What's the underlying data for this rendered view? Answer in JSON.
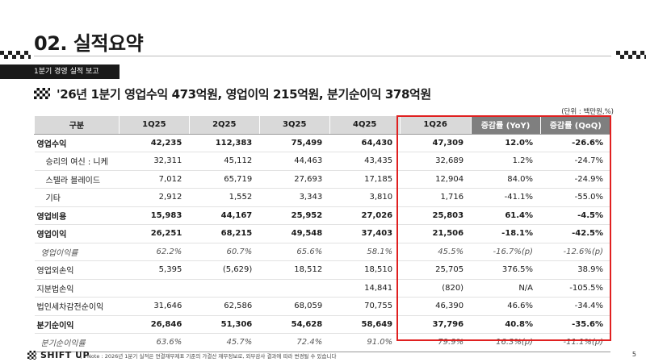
{
  "page": {
    "title": "02. 실적요약",
    "section_tab": "1분기 경영 실적 보고",
    "headline": "'26년 1분기 영업수익 473억원, 영업이익 215억원, 분기순이익 378억원",
    "unit": "(단위 : 백만원,%)",
    "footer_logo": "SHIFT UP",
    "note": "Note : 2026년 1분기 실적은 연결재무제표 기준의 가결산 재무정보로, 외부감사 결과에 따라 변경될 수 있습니다",
    "page_number": "5"
  },
  "table": {
    "headers": [
      "구분",
      "1Q25",
      "2Q25",
      "3Q25",
      "4Q25",
      "1Q26",
      "증감률 (YoY)",
      "증감률 (QoQ)"
    ],
    "rows": [
      {
        "label": "영업수익",
        "style": "bold",
        "values": [
          "42,235",
          "112,383",
          "75,499",
          "64,430",
          "47,309",
          "12.0%",
          "-26.6%"
        ]
      },
      {
        "label": "승리의 여신 : 니케",
        "style": "sub",
        "values": [
          "32,311",
          "45,112",
          "44,463",
          "43,435",
          "32,689",
          "1.2%",
          "-24.7%"
        ]
      },
      {
        "label": "스텔라 블레이드",
        "style": "sub",
        "values": [
          "7,012",
          "65,719",
          "27,693",
          "17,185",
          "12,904",
          "84.0%",
          "-24.9%"
        ]
      },
      {
        "label": "기타",
        "style": "sub",
        "values": [
          "2,912",
          "1,552",
          "3,343",
          "3,810",
          "1,716",
          "-41.1%",
          "-55.0%"
        ]
      },
      {
        "label": "영업비용",
        "style": "bold",
        "values": [
          "15,983",
          "44,167",
          "25,952",
          "27,026",
          "25,803",
          "61.4%",
          "-4.5%"
        ]
      },
      {
        "label": "영업이익",
        "style": "bold",
        "values": [
          "26,251",
          "68,215",
          "49,548",
          "37,403",
          "21,506",
          "-18.1%",
          "-42.5%"
        ]
      },
      {
        "label": "영업이익률",
        "style": "italic",
        "values": [
          "62.2%",
          "60.7%",
          "65.6%",
          "58.1%",
          "45.5%",
          "-16.7%(p)",
          "-12.6%(p)"
        ]
      },
      {
        "label": "영업외손익",
        "style": "normal",
        "values": [
          "5,395",
          "(5,629)",
          "18,512",
          "18,510",
          "25,705",
          "376.5%",
          "38.9%"
        ]
      },
      {
        "label": "지분법손익",
        "style": "normal",
        "values": [
          "",
          "",
          "",
          "14,841",
          "(820)",
          "N/A",
          "-105.5%"
        ]
      },
      {
        "label": "법인세차감전순이익",
        "style": "normal",
        "values": [
          "31,646",
          "62,586",
          "68,059",
          "70,755",
          "46,390",
          "46.6%",
          "-34.4%"
        ]
      },
      {
        "label": "분기순이익",
        "style": "bold",
        "values": [
          "26,846",
          "51,306",
          "54,628",
          "58,649",
          "37,796",
          "40.8%",
          "-35.6%"
        ]
      },
      {
        "label": "분기순이익률",
        "style": "italic",
        "values": [
          "63.6%",
          "45.7%",
          "72.4%",
          "91.0%",
          "79.9%",
          "16.3%(p)",
          "-11.1%(p)"
        ]
      }
    ]
  }
}
